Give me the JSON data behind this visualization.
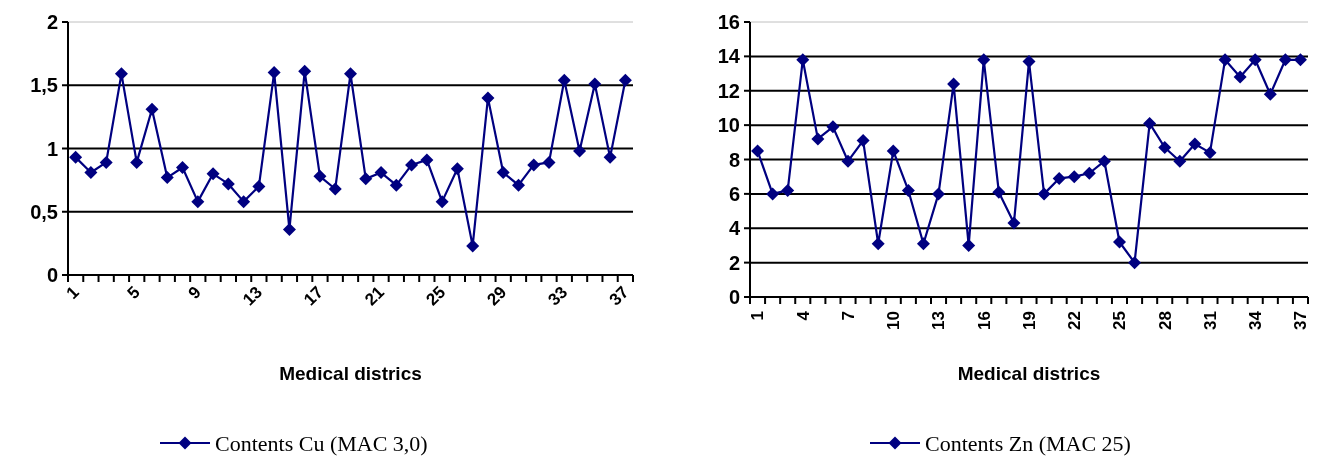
{
  "chart_data": [
    {
      "type": "line",
      "xlabel": "Medical districs",
      "categories": [
        "1",
        null,
        null,
        null,
        "5",
        null,
        null,
        null,
        "9",
        null,
        null,
        null,
        "13",
        null,
        null,
        null,
        "17",
        null,
        null,
        null,
        "21",
        null,
        null,
        null,
        "25",
        null,
        null,
        null,
        "29",
        null,
        null,
        null,
        "33",
        null,
        null,
        null,
        "37"
      ],
      "series": [
        {
          "name": "Contents Cu (MAC 3,0)",
          "color": "#000080",
          "values": [
            0.93,
            0.81,
            0.89,
            1.59,
            0.89,
            1.31,
            0.77,
            0.85,
            0.58,
            0.8,
            0.72,
            0.58,
            0.7,
            1.6,
            0.36,
            1.61,
            0.78,
            0.68,
            1.59,
            0.76,
            0.81,
            0.71,
            0.87,
            0.91,
            0.58,
            0.84,
            0.23,
            1.4,
            0.81,
            0.71,
            0.87,
            0.89,
            1.54,
            0.98,
            1.51,
            0.93,
            1.54
          ]
        }
      ],
      "ylim": [
        0,
        2
      ],
      "yticks": [
        0,
        {
          "value": 0.5,
          "label": "0,5"
        },
        1,
        {
          "value": 1.5,
          "label": "1,5"
        },
        2
      ],
      "grid": "y",
      "marker": "diamond",
      "legend": "bottom"
    },
    {
      "type": "line",
      "xlabel": "Medical districs",
      "categories": [
        "1",
        null,
        null,
        "4",
        null,
        null,
        "7",
        null,
        null,
        "10",
        null,
        null,
        "13",
        null,
        null,
        "16",
        null,
        null,
        "19",
        null,
        null,
        "22",
        null,
        null,
        "25",
        null,
        null,
        "28",
        null,
        null,
        "31",
        null,
        null,
        "34",
        null,
        null,
        "37"
      ],
      "series": [
        {
          "name": "Contents Zn (MAC 25)",
          "color": "#000080",
          "values": [
            8.5,
            6.0,
            6.2,
            13.8,
            9.2,
            9.9,
            7.9,
            9.1,
            3.1,
            8.5,
            6.2,
            3.1,
            6.0,
            12.4,
            3.0,
            13.8,
            6.1,
            4.3,
            13.7,
            6.0,
            6.9,
            7.0,
            7.2,
            7.9,
            3.2,
            2.0,
            10.1,
            8.7,
            7.9,
            8.9,
            8.4,
            13.8,
            12.8,
            13.8,
            11.8,
            13.8,
            13.8
          ]
        }
      ],
      "ylim": [
        0,
        16
      ],
      "yticks": [
        0,
        2,
        4,
        6,
        8,
        10,
        12,
        14,
        16
      ],
      "grid": "y",
      "marker": "diamond",
      "legend": "bottom"
    }
  ]
}
